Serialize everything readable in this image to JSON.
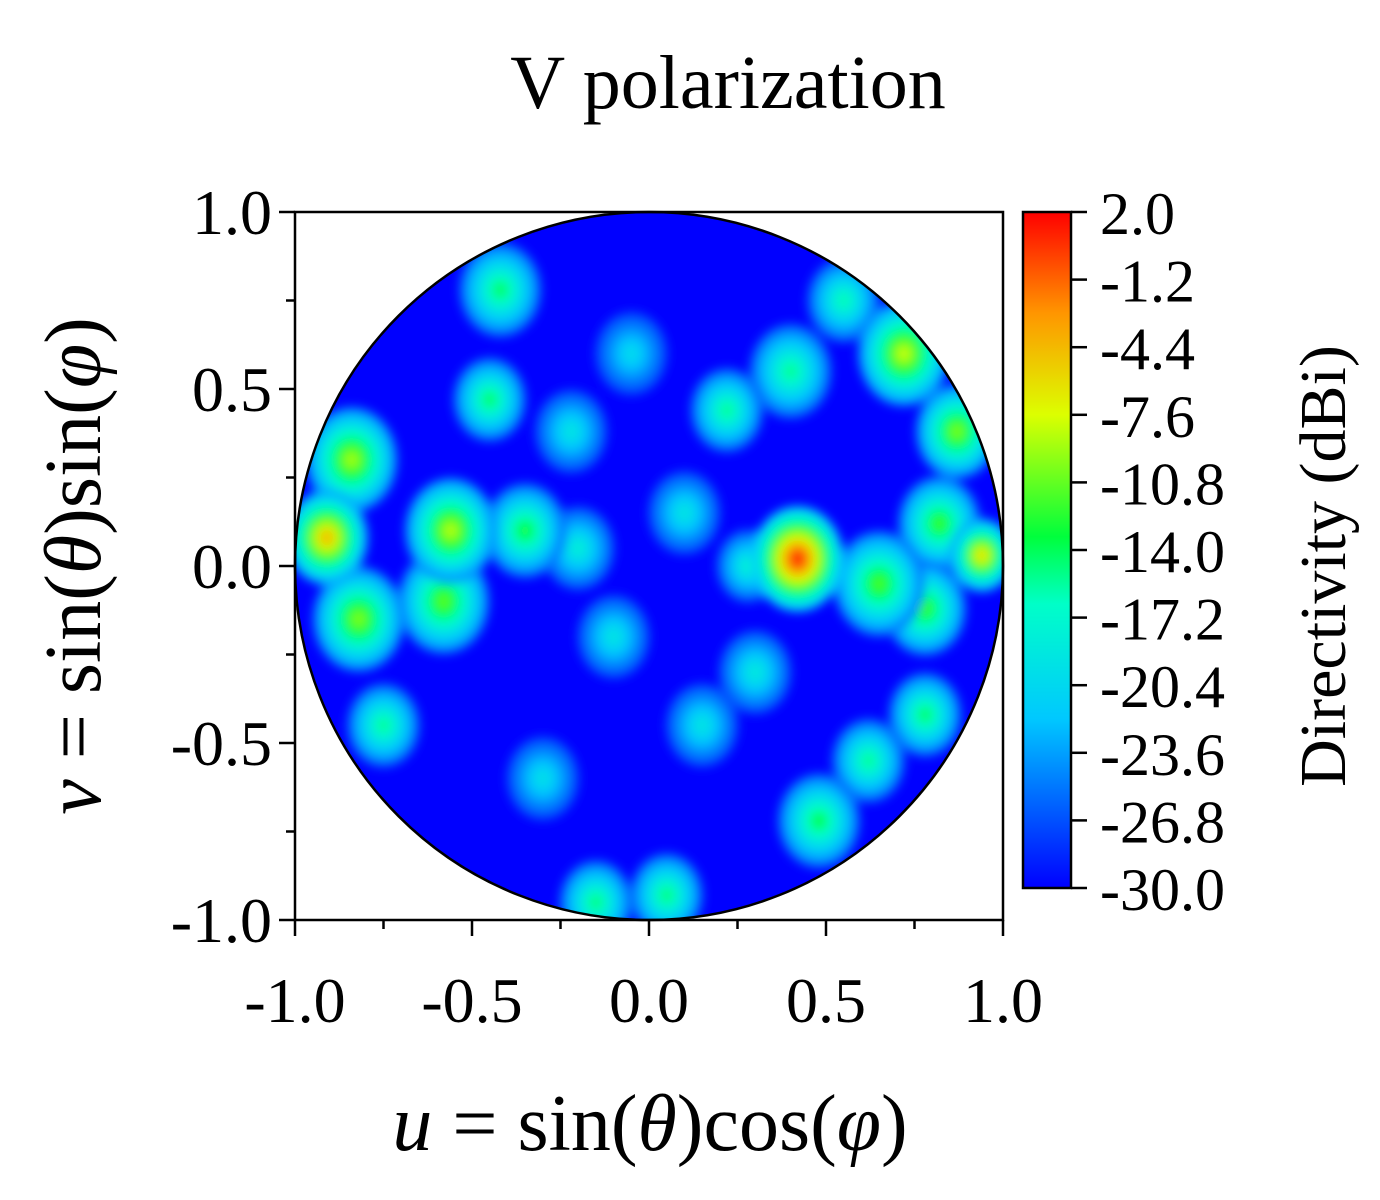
{
  "chart_data": {
    "type": "heatmap",
    "title": "V polarization",
    "xlabel": {
      "var": "u",
      "eq": " = sin(",
      "theta": "θ",
      "mid": ")cos(",
      "phi": "φ",
      "end": ")"
    },
    "ylabel": {
      "var": "v",
      "eq": " = sin(",
      "theta": "θ",
      "mid": ")sin(",
      "phi": "φ",
      "end": ")"
    },
    "xlim": [
      -1.0,
      1.0
    ],
    "ylim": [
      -1.0,
      1.0
    ],
    "x_ticks": [
      "-1.0",
      "-0.5",
      "0.0",
      "0.5",
      "1.0"
    ],
    "y_ticks": [
      "1.0",
      "0.5",
      "0.0",
      "-0.5",
      "-1.0"
    ],
    "colorbar": {
      "label": "Directivity (dBi)",
      "range": [
        -30.0,
        2.0
      ],
      "ticks": [
        "2.0",
        "-1.2",
        "-4.4",
        "-7.6",
        "-10.8",
        "-14.0",
        "-17.2",
        "-20.4",
        "-23.6",
        "-26.8",
        "-30.0"
      ]
    },
    "region": "unit circle u^2 + v^2 <= 1",
    "background_level_dBi": -30,
    "peaks": [
      {
        "u": 0.42,
        "v": 0.02,
        "level_dBi": 1.5,
        "spread": 0.05
      },
      {
        "u": -0.91,
        "v": 0.08,
        "level_dBi": -4.0,
        "spread": 0.045
      },
      {
        "u": 0.94,
        "v": 0.03,
        "level_dBi": -5.5,
        "spread": 0.035
      },
      {
        "u": -0.84,
        "v": 0.3,
        "level_dBi": -9.0,
        "spread": 0.05
      },
      {
        "u": -0.82,
        "v": -0.15,
        "level_dBi": -10.0,
        "spread": 0.05
      },
      {
        "u": -0.56,
        "v": 0.1,
        "level_dBi": -8.5,
        "spread": 0.05
      },
      {
        "u": -0.58,
        "v": -0.1,
        "level_dBi": -11.0,
        "spread": 0.05
      },
      {
        "u": -0.35,
        "v": 0.1,
        "level_dBi": -13.0,
        "spread": 0.045
      },
      {
        "u": -0.75,
        "v": -0.45,
        "level_dBi": -15.0,
        "spread": 0.04
      },
      {
        "u": -0.42,
        "v": 0.78,
        "level_dBi": -14.0,
        "spread": 0.045
      },
      {
        "u": -0.45,
        "v": 0.47,
        "level_dBi": -14.0,
        "spread": 0.04
      },
      {
        "u": 0.72,
        "v": 0.6,
        "level_dBi": -8.0,
        "spread": 0.05
      },
      {
        "u": 0.87,
        "v": 0.38,
        "level_dBi": -10.0,
        "spread": 0.045
      },
      {
        "u": 0.82,
        "v": 0.12,
        "level_dBi": -12.0,
        "spread": 0.045
      },
      {
        "u": 0.65,
        "v": -0.05,
        "level_dBi": -11.5,
        "spread": 0.05
      },
      {
        "u": 0.78,
        "v": -0.12,
        "level_dBi": -12.0,
        "spread": 0.045
      },
      {
        "u": 0.4,
        "v": 0.55,
        "level_dBi": -15.0,
        "spread": 0.045
      },
      {
        "u": 0.55,
        "v": 0.75,
        "level_dBi": -16.0,
        "spread": 0.04
      },
      {
        "u": 0.48,
        "v": -0.72,
        "level_dBi": -13.5,
        "spread": 0.045
      },
      {
        "u": 0.78,
        "v": -0.42,
        "level_dBi": -14.0,
        "spread": 0.04
      },
      {
        "u": 0.62,
        "v": -0.55,
        "level_dBi": -15.0,
        "spread": 0.04
      },
      {
        "u": -0.15,
        "v": -0.95,
        "level_dBi": -14.5,
        "spread": 0.04
      },
      {
        "u": 0.05,
        "v": -0.93,
        "level_dBi": -14.5,
        "spread": 0.04
      },
      {
        "u": 0.22,
        "v": 0.44,
        "level_dBi": -15.0,
        "spread": 0.04
      },
      {
        "u": -0.22,
        "v": 0.38,
        "level_dBi": -19.0,
        "spread": 0.04
      },
      {
        "u": 0.1,
        "v": 0.15,
        "level_dBi": -19.0,
        "spread": 0.04
      },
      {
        "u": -0.1,
        "v": -0.2,
        "level_dBi": -19.0,
        "spread": 0.04
      },
      {
        "u": 0.15,
        "v": -0.45,
        "level_dBi": -19.0,
        "spread": 0.04
      },
      {
        "u": -0.3,
        "v": -0.6,
        "level_dBi": -19.5,
        "spread": 0.04
      },
      {
        "u": 0.3,
        "v": -0.3,
        "level_dBi": -18.5,
        "spread": 0.04
      },
      {
        "u": -0.05,
        "v": 0.6,
        "level_dBi": -20.0,
        "spread": 0.04
      },
      {
        "u": 0.28,
        "v": 0.0,
        "level_dBi": -17.5,
        "spread": 0.035
      },
      {
        "u": -0.2,
        "v": 0.05,
        "level_dBi": -18.0,
        "spread": 0.04
      }
    ]
  }
}
